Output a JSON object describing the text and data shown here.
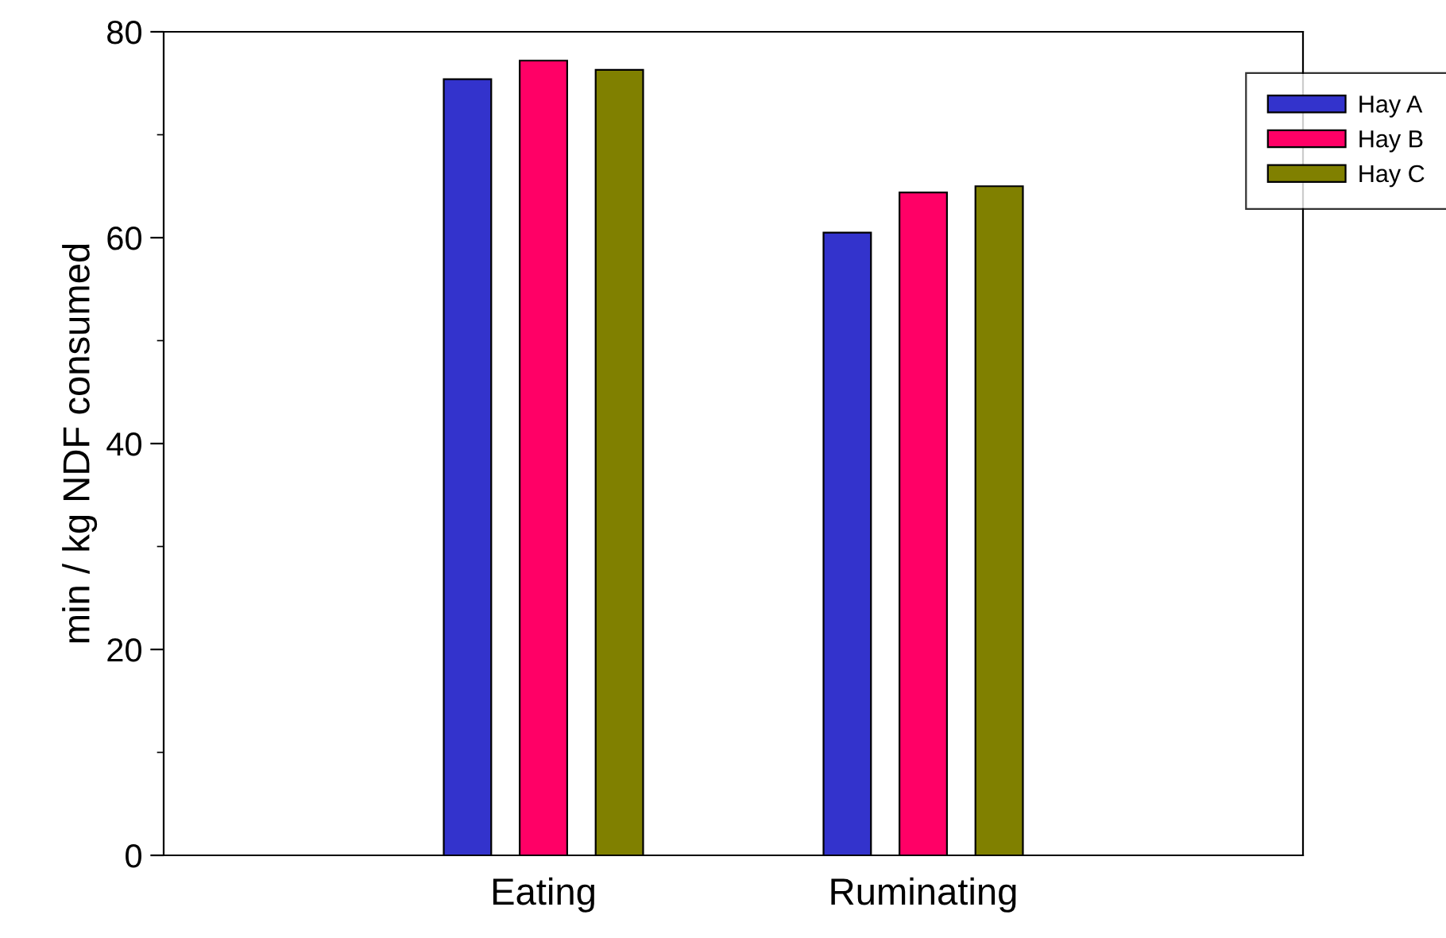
{
  "chart_data": {
    "type": "bar",
    "ylabel": "min / kg NDF consumed",
    "categories": [
      "Eating",
      "Ruminating"
    ],
    "series": [
      {
        "name": "Hay A",
        "color": "#3333cc",
        "values": [
          75.4,
          60.5
        ]
      },
      {
        "name": "Hay B",
        "color": "#ff0066",
        "values": [
          77.2,
          64.4
        ]
      },
      {
        "name": "Hay C",
        "color": "#808000",
        "values": [
          76.3,
          65.0
        ]
      }
    ],
    "ylim": [
      0,
      80
    ],
    "yticks": [
      0,
      20,
      40,
      60,
      80
    ],
    "grid": false,
    "legend": "top right"
  }
}
